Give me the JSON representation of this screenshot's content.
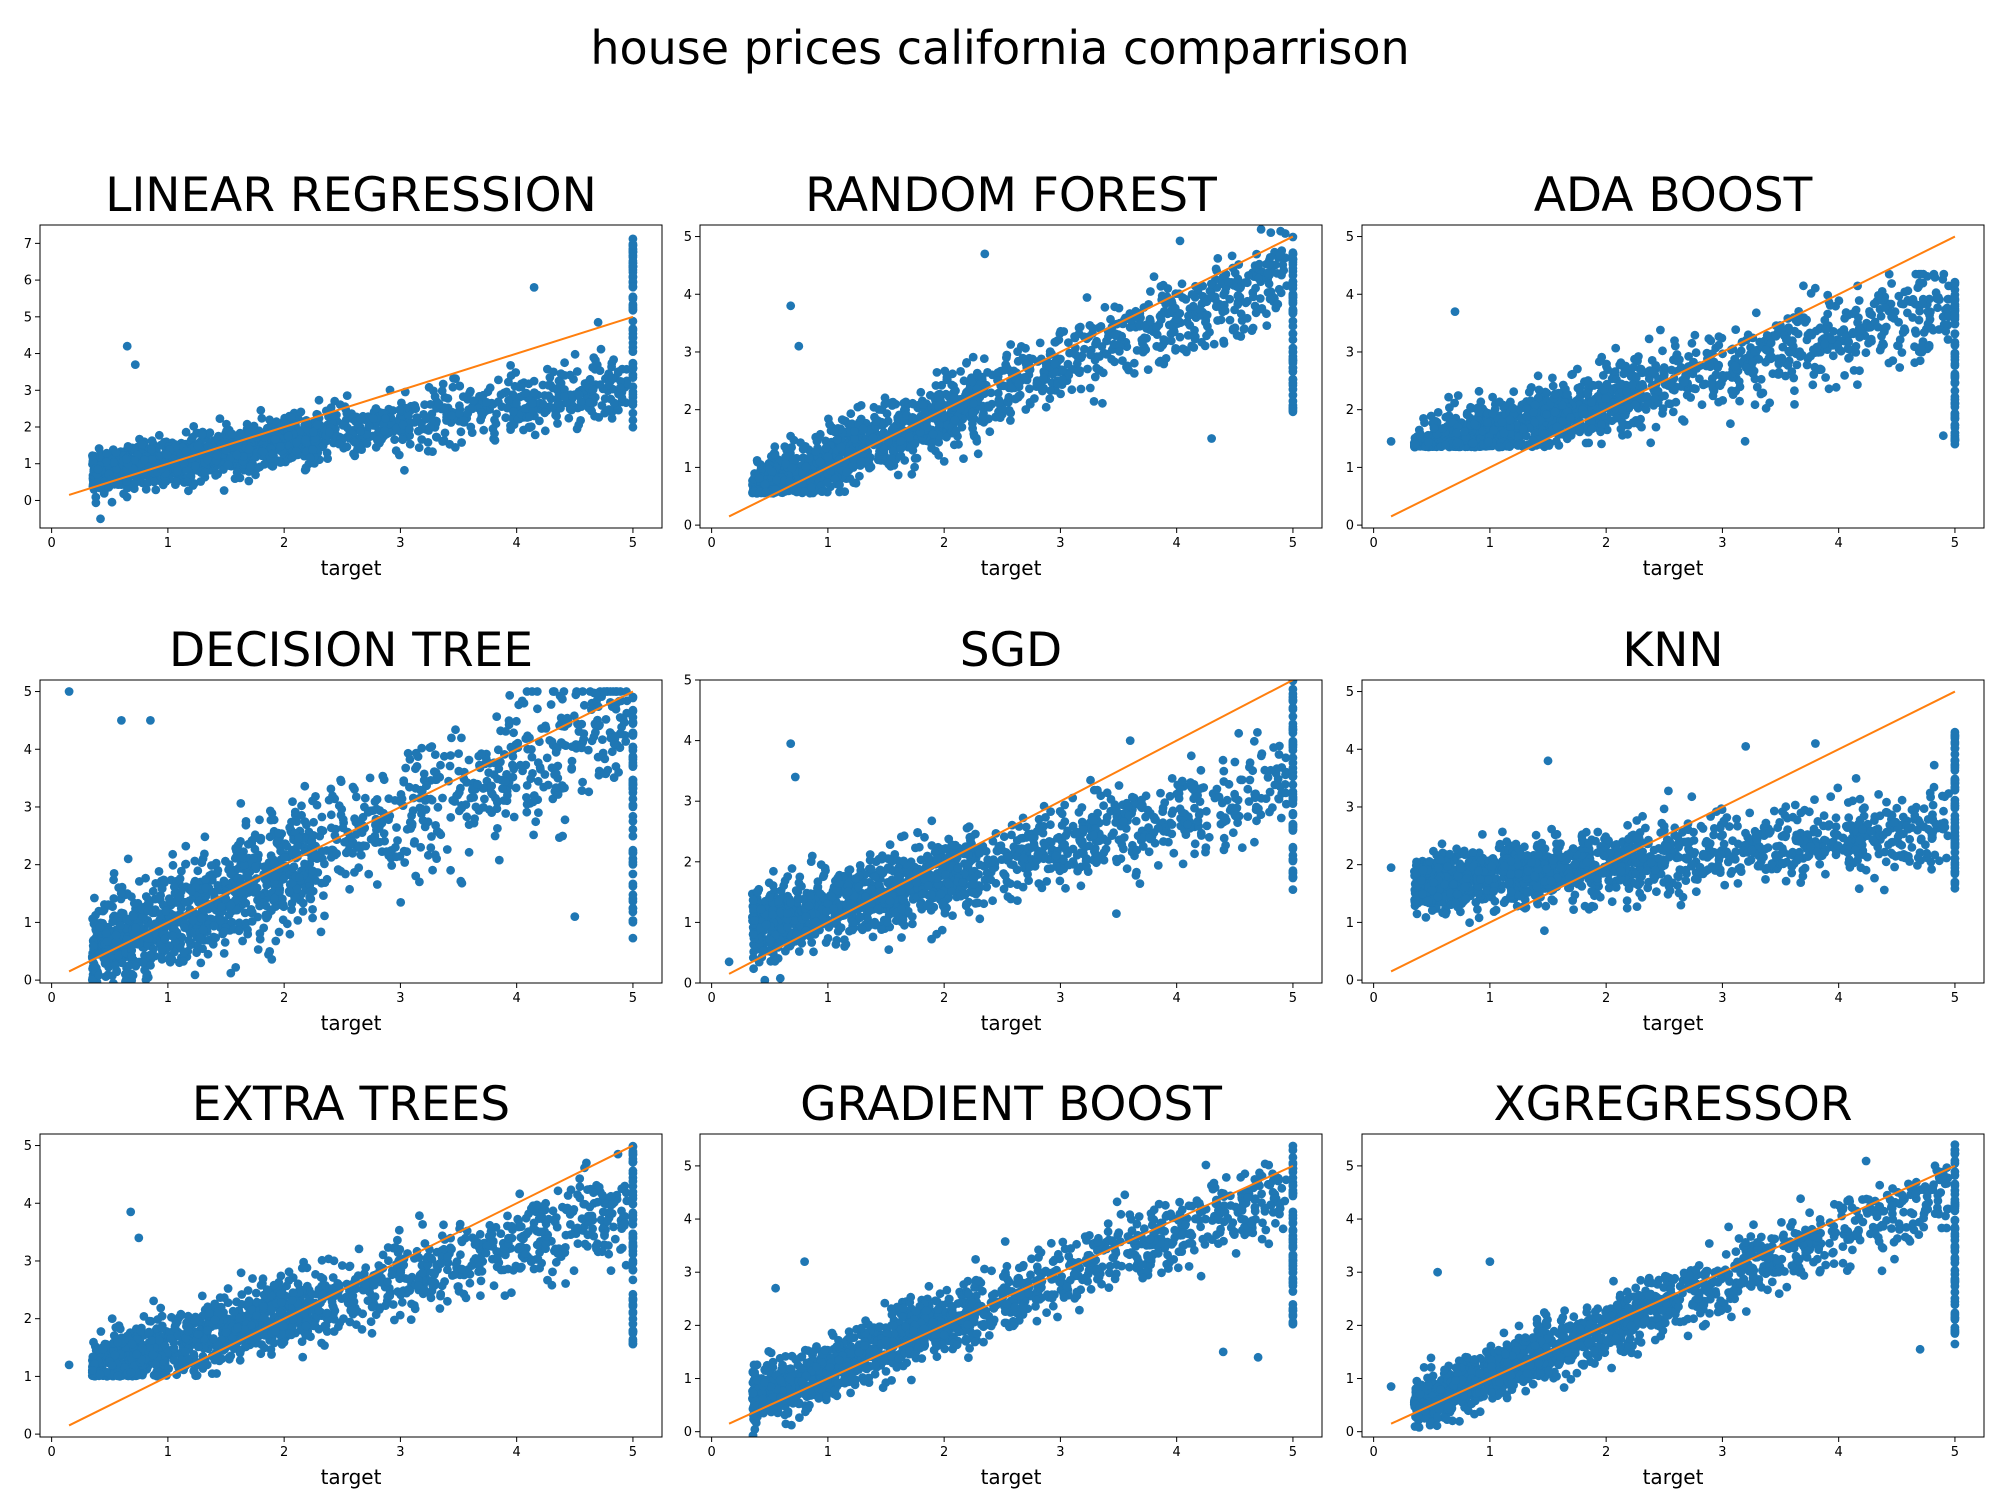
{
  "figure": {
    "title": "house prices california comparrison"
  },
  "colors": {
    "scatter": "#1f77b4",
    "identity_line": "#ff7f0e"
  },
  "chart_data": [
    {
      "type": "scatter",
      "title": "LINEAR REGRESSION",
      "xlabel": "target",
      "ylabel": "",
      "xlim": [
        -0.1,
        5.25
      ],
      "ylim": [
        -0.75,
        7.5
      ],
      "xticks": [
        0,
        1,
        2,
        3,
        4,
        5
      ],
      "yticks": [
        0,
        1,
        2,
        3,
        4,
        5,
        6,
        7
      ],
      "identity_line": {
        "x": [
          0.15,
          5.0
        ],
        "y": [
          0.15,
          5.0
        ]
      },
      "cloud": {
        "intercept": 0.55,
        "slope": 0.52,
        "spread": 0.38,
        "capped_high": 7.2,
        "capped_low": 1.7
      },
      "outliers": [
        {
          "x": 0.65,
          "y": 4.2
        },
        {
          "x": 0.72,
          "y": 3.7
        },
        {
          "x": 4.15,
          "y": 5.8
        },
        {
          "x": 4.7,
          "y": 4.85
        },
        {
          "x": 0.42,
          "y": -0.5
        }
      ]
    },
    {
      "type": "scatter",
      "title": "RANDOM FOREST",
      "xlabel": "target",
      "ylabel": "",
      "xlim": [
        -0.1,
        5.25
      ],
      "ylim": [
        -0.05,
        5.2
      ],
      "xticks": [
        0,
        1,
        2,
        3,
        4,
        5
      ],
      "yticks": [
        0,
        1,
        2,
        3,
        4,
        5
      ],
      "identity_line": {
        "x": [
          0.15,
          5.0
        ],
        "y": [
          0.15,
          5.0
        ]
      },
      "cloud": {
        "intercept": 0.3,
        "slope": 0.82,
        "spread": 0.33,
        "capped_high": 5.0,
        "capped_low": 1.9,
        "floor": 0.55
      },
      "outliers": [
        {
          "x": 0.68,
          "y": 3.8
        },
        {
          "x": 0.75,
          "y": 3.1
        },
        {
          "x": 2.35,
          "y": 4.7
        },
        {
          "x": 4.3,
          "y": 1.5
        }
      ]
    },
    {
      "type": "scatter",
      "title": "ADA BOOST",
      "xlabel": "target",
      "ylabel": "",
      "xlim": [
        -0.1,
        5.25
      ],
      "ylim": [
        -0.05,
        5.2
      ],
      "xticks": [
        0,
        1,
        2,
        3,
        4,
        5
      ],
      "yticks": [
        0,
        1,
        2,
        3,
        4,
        5
      ],
      "identity_line": {
        "x": [
          0.15,
          5.0
        ],
        "y": [
          0.15,
          5.0
        ]
      },
      "cloud": {
        "intercept": 1.05,
        "slope": 0.55,
        "spread": 0.35,
        "capped_high": 4.35,
        "capped_low": 1.4,
        "floor": 1.35,
        "ceiling": 4.35
      },
      "outliers": [
        {
          "x": 0.7,
          "y": 3.7
        },
        {
          "x": 0.15,
          "y": 1.45
        },
        {
          "x": 4.9,
          "y": 1.55
        }
      ]
    },
    {
      "type": "scatter",
      "title": "DECISION TREE",
      "xlabel": "target",
      "ylabel": "",
      "xlim": [
        -0.1,
        5.25
      ],
      "ylim": [
        -0.05,
        5.2
      ],
      "xticks": [
        0,
        1,
        2,
        3,
        4,
        5
      ],
      "yticks": [
        0,
        1,
        2,
        3,
        4,
        5
      ],
      "identity_line": {
        "x": [
          0.15,
          5.0
        ],
        "y": [
          0.15,
          5.0
        ]
      },
      "cloud": {
        "intercept": 0.15,
        "slope": 0.88,
        "spread": 0.55,
        "capped_high": 5.0,
        "capped_low": 0.7,
        "ceiling": 5.0
      },
      "outliers": [
        {
          "x": 0.15,
          "y": 5.0
        },
        {
          "x": 0.6,
          "y": 4.5
        },
        {
          "x": 0.85,
          "y": 4.5
        },
        {
          "x": 4.5,
          "y": 1.1
        }
      ]
    },
    {
      "type": "scatter",
      "title": "SGD",
      "xlabel": "target",
      "ylabel": "",
      "xlim": [
        -0.1,
        5.25
      ],
      "ylim": [
        0,
        5.0
      ],
      "xticks": [
        0,
        1,
        2,
        3,
        4,
        5
      ],
      "yticks": [
        0,
        1,
        2,
        3,
        4,
        5
      ],
      "identity_line": {
        "x": [
          0.15,
          5.0
        ],
        "y": [
          0.15,
          5.0
        ]
      },
      "cloud": {
        "intercept": 0.75,
        "slope": 0.5,
        "spread": 0.36,
        "capped_high": 5.0,
        "capped_low": 1.5,
        "floor": 0.0
      },
      "outliers": [
        {
          "x": 0.68,
          "y": 3.95
        },
        {
          "x": 0.72,
          "y": 3.4
        },
        {
          "x": 0.15,
          "y": 0.35
        },
        {
          "x": 3.6,
          "y": 4.0
        }
      ]
    },
    {
      "type": "scatter",
      "title": "KNN",
      "xlabel": "target",
      "ylabel": "",
      "xlim": [
        -0.1,
        5.25
      ],
      "ylim": [
        -0.05,
        5.2
      ],
      "xticks": [
        0,
        1,
        2,
        3,
        4,
        5
      ],
      "yticks": [
        0,
        1,
        2,
        3,
        4,
        5
      ],
      "identity_line": {
        "x": [
          0.15,
          5.0
        ],
        "y": [
          0.15,
          5.0
        ]
      },
      "cloud": {
        "intercept": 1.55,
        "slope": 0.22,
        "spread": 0.32,
        "capped_high": 4.3,
        "capped_low": 1.5
      },
      "outliers": [
        {
          "x": 1.5,
          "y": 3.8
        },
        {
          "x": 3.2,
          "y": 4.05
        },
        {
          "x": 0.15,
          "y": 1.95
        },
        {
          "x": 3.8,
          "y": 4.1
        }
      ]
    },
    {
      "type": "scatter",
      "title": "EXTRA TREES",
      "xlabel": "target",
      "ylabel": "",
      "xlim": [
        -0.1,
        5.25
      ],
      "ylim": [
        -0.05,
        5.2
      ],
      "xticks": [
        0,
        1,
        2,
        3,
        4,
        5
      ],
      "yticks": [
        0,
        1,
        2,
        3,
        4,
        5
      ],
      "identity_line": {
        "x": [
          0.15,
          5.0
        ],
        "y": [
          0.15,
          5.0
        ]
      },
      "cloud": {
        "intercept": 0.9,
        "slope": 0.6,
        "spread": 0.33,
        "capped_high": 5.0,
        "capped_low": 1.45,
        "floor": 1.0
      },
      "outliers": [
        {
          "x": 0.68,
          "y": 3.85
        },
        {
          "x": 0.75,
          "y": 3.4
        },
        {
          "x": 0.15,
          "y": 1.2
        },
        {
          "x": 4.6,
          "y": 4.7
        }
      ]
    },
    {
      "type": "scatter",
      "title": "GRADIENT BOOST",
      "xlabel": "target",
      "ylabel": "",
      "xlim": [
        -0.1,
        5.25
      ],
      "ylim": [
        -0.1,
        5.6
      ],
      "xticks": [
        0,
        1,
        2,
        3,
        4,
        5
      ],
      "yticks": [
        0,
        1,
        2,
        3,
        4,
        5
      ],
      "identity_line": {
        "x": [
          0.15,
          5.0
        ],
        "y": [
          0.15,
          5.0
        ]
      },
      "cloud": {
        "intercept": 0.35,
        "slope": 0.85,
        "spread": 0.32,
        "capped_high": 5.4,
        "capped_low": 2.0
      },
      "outliers": [
        {
          "x": 0.8,
          "y": 3.2
        },
        {
          "x": 0.55,
          "y": 2.7
        },
        {
          "x": 4.4,
          "y": 1.5
        },
        {
          "x": 4.7,
          "y": 1.4
        }
      ]
    },
    {
      "type": "scatter",
      "title": "XGREGRESSOR",
      "xlabel": "target",
      "ylabel": "",
      "xlim": [
        -0.1,
        5.25
      ],
      "ylim": [
        -0.1,
        5.6
      ],
      "xticks": [
        0,
        1,
        2,
        3,
        4,
        5
      ],
      "yticks": [
        0,
        1,
        2,
        3,
        4,
        5
      ],
      "identity_line": {
        "x": [
          0.15,
          5.0
        ],
        "y": [
          0.15,
          5.0
        ]
      },
      "cloud": {
        "intercept": 0.15,
        "slope": 0.9,
        "spread": 0.3,
        "capped_high": 5.5,
        "capped_low": 1.6
      },
      "outliers": [
        {
          "x": 0.55,
          "y": 3.0
        },
        {
          "x": 1.0,
          "y": 3.2
        },
        {
          "x": 4.7,
          "y": 1.55
        },
        {
          "x": 0.15,
          "y": 0.85
        }
      ]
    }
  ]
}
